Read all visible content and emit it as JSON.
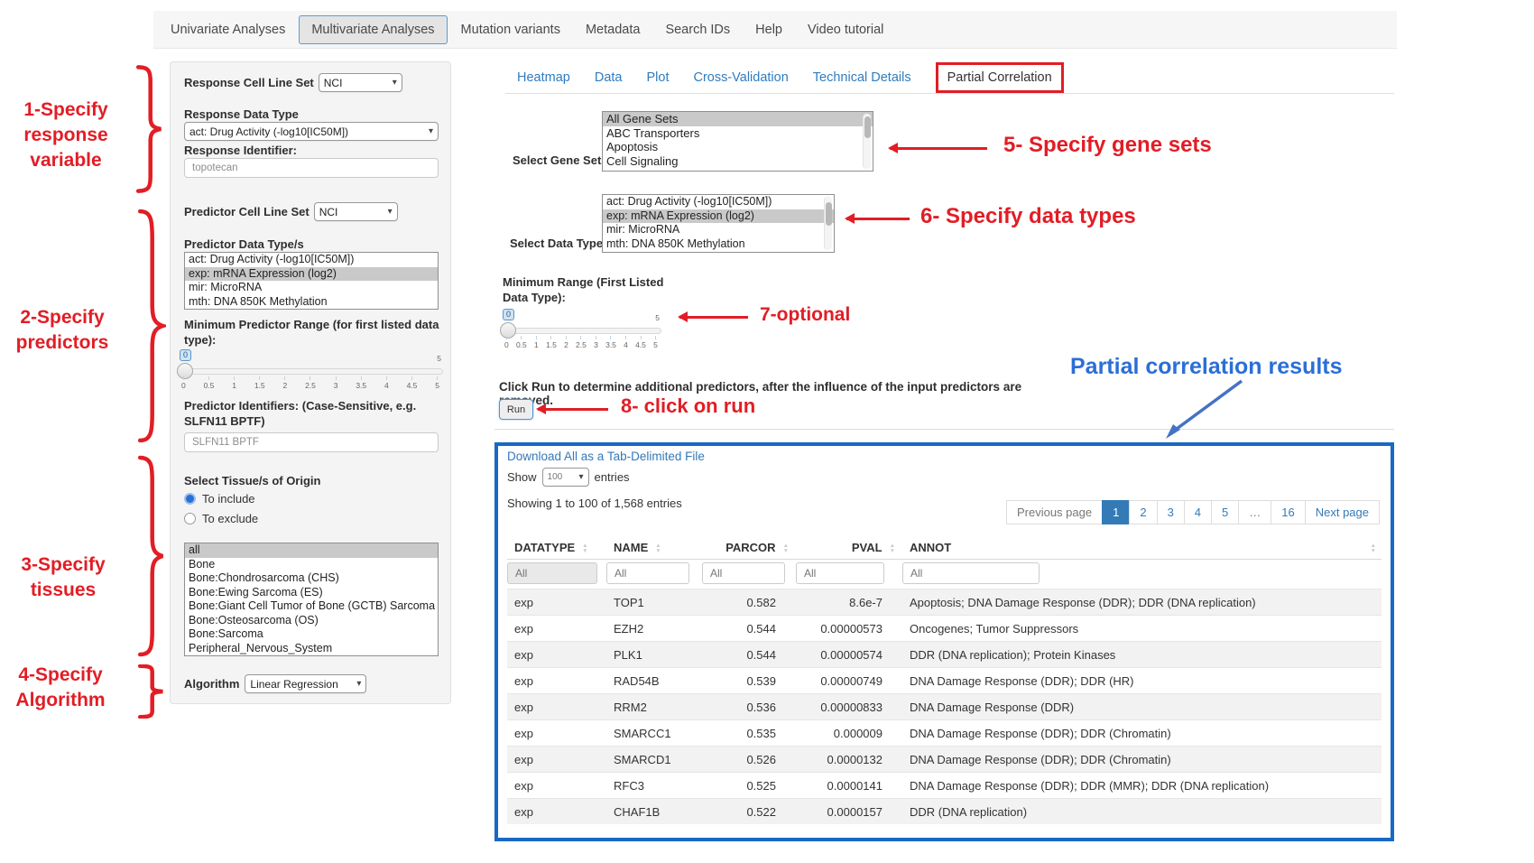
{
  "nav": {
    "tabs": [
      {
        "label": "Univariate Analyses",
        "active": false
      },
      {
        "label": "Multivariate Analyses",
        "active": true
      },
      {
        "label": "Mutation variants",
        "active": false
      },
      {
        "label": "Metadata",
        "active": false
      },
      {
        "label": "Search IDs",
        "active": false
      },
      {
        "label": "Help",
        "active": false
      },
      {
        "label": "Video tutorial",
        "active": false
      }
    ]
  },
  "form": {
    "response_cell_line_set": {
      "label": "Response Cell Line Set",
      "value": "NCI"
    },
    "response_data_type": {
      "label": "Response Data Type",
      "value": "act: Drug Activity (-log10[IC50M])"
    },
    "response_identifier": {
      "label": "Response Identifier:",
      "value": "topotecan"
    },
    "predictor_cell_line_set": {
      "label": "Predictor Cell Line Set",
      "value": "NCI"
    },
    "predictor_data_types": {
      "label": "Predictor Data Type/s",
      "options": [
        "act: Drug Activity (-log10[IC50M])",
        "exp: mRNA Expression (log2)",
        "mir: MicroRNA",
        "mth: DNA 850K Methylation"
      ],
      "selected_index": 1
    },
    "min_predictor_range": {
      "label": "Minimum Predictor Range (for first listed data type):",
      "value": "0",
      "max_label": "5",
      "ticks": [
        "0",
        "0.5",
        "1",
        "1.5",
        "2",
        "2.5",
        "3",
        "3.5",
        "4",
        "4.5",
        "5"
      ]
    },
    "predictor_identifiers": {
      "label": "Predictor Identifiers: (Case-Sensitive, e.g. SLFN11 BPTF)",
      "value": "SLFN11 BPTF"
    },
    "tissues": {
      "label": "Select Tissue/s of Origin",
      "radios": [
        {
          "label": "To include",
          "checked": true
        },
        {
          "label": "To exclude",
          "checked": false
        }
      ],
      "options": [
        "all",
        "Bone",
        "Bone:Chondrosarcoma (CHS)",
        "Bone:Ewing Sarcoma (ES)",
        "Bone:Giant Cell Tumor of Bone (GCTB) Sarcoma",
        "Bone:Osteosarcoma (OS)",
        "Bone:Sarcoma",
        "Peripheral_Nervous_System"
      ],
      "selected_index": 0
    },
    "algorithm": {
      "label": "Algorithm",
      "value": "Linear Regression"
    }
  },
  "subtabs": [
    {
      "label": "Heatmap",
      "active": false
    },
    {
      "label": "Data",
      "active": false
    },
    {
      "label": "Plot",
      "active": false
    },
    {
      "label": "Cross-Validation",
      "active": false
    },
    {
      "label": "Technical Details",
      "active": false
    },
    {
      "label": "Partial Correlation",
      "active": true
    }
  ],
  "gene_sets": {
    "label": "Select Gene Sets",
    "options": [
      "All Gene Sets",
      "ABC Transporters",
      "Apoptosis",
      "Cell Signaling"
    ],
    "selected_index": 0
  },
  "data_types": {
    "label": "Select Data Types",
    "options": [
      "act: Drug Activity (-log10[IC50M])",
      "exp: mRNA Expression (log2)",
      "mir: MicroRNA",
      "mth: DNA 850K Methylation"
    ],
    "selected_index": 1
  },
  "min_range": {
    "label_line1": "Minimum Range (First Listed",
    "label_line2": "Data Type):",
    "value": "0",
    "max_label": "5",
    "ticks": [
      "0",
      "0.5",
      "1",
      "1.5",
      "2",
      "2.5",
      "3",
      "3.5",
      "4",
      "4.5",
      "5"
    ]
  },
  "run": {
    "instruction": "Click Run to determine additional predictors, after the influence of the input predictors are removed.",
    "button_label": "Run"
  },
  "results": {
    "download_link": "Download All as a Tab-Delimited File",
    "show_label": "Show",
    "show_value": "100",
    "entries_label": "entries",
    "showing_text": "Showing 1 to 100 of 1,568 entries",
    "pagination": {
      "prev": "Previous page",
      "pages": [
        "1",
        "2",
        "3",
        "4",
        "5",
        "…",
        "16"
      ],
      "active_page": "1",
      "next": "Next page"
    },
    "table": {
      "columns": [
        "DATATYPE",
        "NAME",
        "PARCOR",
        "PVAL",
        "ANNOT"
      ],
      "filter_placeholder": "All",
      "rows": [
        {
          "datatype": "exp",
          "name": "TOP1",
          "parcor": "0.582",
          "pval": "8.6e-7",
          "annot": "Apoptosis; DNA Damage Response (DDR); DDR (DNA replication)"
        },
        {
          "datatype": "exp",
          "name": "EZH2",
          "parcor": "0.544",
          "pval": "0.00000573",
          "annot": "Oncogenes; Tumor Suppressors"
        },
        {
          "datatype": "exp",
          "name": "PLK1",
          "parcor": "0.544",
          "pval": "0.00000574",
          "annot": "DDR (DNA replication); Protein Kinases"
        },
        {
          "datatype": "exp",
          "name": "RAD54B",
          "parcor": "0.539",
          "pval": "0.00000749",
          "annot": "DNA Damage Response (DDR); DDR (HR)"
        },
        {
          "datatype": "exp",
          "name": "RRM2",
          "parcor": "0.536",
          "pval": "0.00000833",
          "annot": "DNA Damage Response (DDR)"
        },
        {
          "datatype": "exp",
          "name": "SMARCC1",
          "parcor": "0.535",
          "pval": "0.000009",
          "annot": "DNA Damage Response (DDR); DDR (Chromatin)"
        },
        {
          "datatype": "exp",
          "name": "SMARCD1",
          "parcor": "0.526",
          "pval": "0.0000132",
          "annot": "DNA Damage Response (DDR); DDR (Chromatin)"
        },
        {
          "datatype": "exp",
          "name": "RFC3",
          "parcor": "0.525",
          "pval": "0.0000141",
          "annot": "DNA Damage Response (DDR); DDR (MMR); DDR (DNA replication)"
        },
        {
          "datatype": "exp",
          "name": "CHAF1B",
          "parcor": "0.522",
          "pval": "0.0000157",
          "annot": "DDR (DNA replication)"
        }
      ]
    }
  },
  "annotations": {
    "step1": {
      "lines": [
        "1-Specify",
        "response",
        "variable"
      ]
    },
    "step2": {
      "lines": [
        "2-Specify",
        "predictors"
      ]
    },
    "step3": {
      "lines": [
        "3-Specify",
        "tissues"
      ]
    },
    "step4": {
      "lines": [
        "4-Specify",
        "Algorithm"
      ]
    },
    "step5": {
      "text": "5- Specify gene sets"
    },
    "step6": {
      "text": "6- Specify data types"
    },
    "step7": {
      "text": "7-optional"
    },
    "step8": {
      "text": "8- click on run"
    },
    "results_title": {
      "text": "Partial correlation results"
    }
  },
  "colors": {
    "annotation_red": "#e21d25",
    "results_title_blue": "#2b6fd6",
    "results_box_border": "#1769c4",
    "link_blue": "#337ab7",
    "active_page_bg": "#337ab7"
  }
}
